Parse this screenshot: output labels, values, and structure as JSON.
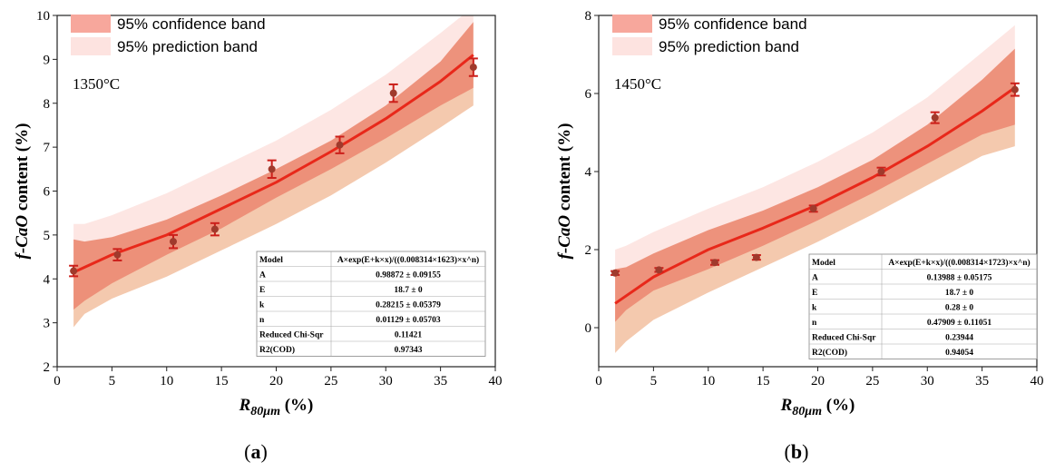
{
  "chart_data": [
    {
      "type": "line",
      "panel_label": "a",
      "temperature_label": "1350°C",
      "xlabel_main": "R",
      "xlabel_sub": "80μm",
      "xlabel_unit": " (%)",
      "ylabel": "f-CaO content (%)",
      "xlim": [
        0,
        40
      ],
      "ylim": [
        2,
        10
      ],
      "xticks": [
        0,
        5,
        10,
        15,
        20,
        25,
        30,
        35,
        40
      ],
      "yticks": [
        2,
        3,
        4,
        5,
        6,
        7,
        8,
        9,
        10
      ],
      "legend": [
        "95% confidence band",
        "95% prediction band"
      ],
      "colors": {
        "fit": "#e8281a",
        "points": "#a03a2c",
        "errorbar": "#cc1f1a",
        "conf_upper": "#ec8d76",
        "conf_lower": "#ee9880",
        "pred_upper": "#fde6e3",
        "pred_lower": "#f4c9ae"
      },
      "points": [
        {
          "x": 1.5,
          "y": 4.18,
          "err": 0.12
        },
        {
          "x": 5.5,
          "y": 4.55,
          "err": 0.13
        },
        {
          "x": 10.6,
          "y": 4.85,
          "err": 0.15
        },
        {
          "x": 14.4,
          "y": 5.13,
          "err": 0.14
        },
        {
          "x": 19.6,
          "y": 6.5,
          "err": 0.2
        },
        {
          "x": 25.8,
          "y": 7.05,
          "err": 0.19
        },
        {
          "x": 30.7,
          "y": 8.23,
          "err": 0.2
        },
        {
          "x": 38.0,
          "y": 8.82,
          "err": 0.2
        }
      ],
      "fit": {
        "x": [
          1.5,
          5,
          10,
          15,
          20,
          25,
          30,
          35,
          38
        ],
        "y": [
          4.15,
          4.55,
          5.0,
          5.6,
          6.2,
          6.9,
          7.65,
          8.5,
          9.1
        ]
      },
      "confidence_band": {
        "x": [
          1.5,
          2.5,
          5,
          10,
          15,
          20,
          25,
          30,
          35,
          38
        ],
        "upper": [
          4.9,
          4.85,
          4.95,
          5.35,
          5.9,
          6.5,
          7.15,
          7.95,
          8.95,
          9.85
        ],
        "lower": [
          3.3,
          3.5,
          3.9,
          4.55,
          5.15,
          5.85,
          6.5,
          7.2,
          7.95,
          8.35
        ]
      },
      "prediction_band": {
        "x": [
          1.5,
          2.5,
          5,
          10,
          15,
          20,
          25,
          30,
          35,
          38
        ],
        "upper": [
          5.25,
          5.25,
          5.45,
          5.95,
          6.55,
          7.15,
          7.85,
          8.65,
          9.6,
          10.2
        ],
        "lower": [
          2.9,
          3.2,
          3.55,
          4.05,
          4.65,
          5.25,
          5.9,
          6.65,
          7.45,
          7.95
        ]
      },
      "fit_table": [
        [
          "Model",
          "A×exp(E+k×x)/((0.008314×1623)×x^n)"
        ],
        [
          "A",
          "0.98872 ± 0.09155"
        ],
        [
          "E",
          "18.7 ± 0"
        ],
        [
          "k",
          "0.28215 ± 0.05379"
        ],
        [
          "n",
          "0.01129 ± 0.05703"
        ],
        [
          "Reduced Chi-Sqr",
          "0.11421"
        ],
        [
          "R2(COD)",
          "0.97343"
        ]
      ]
    },
    {
      "type": "line",
      "panel_label": "b",
      "temperature_label": "1450°C",
      "xlabel_main": "R",
      "xlabel_sub": "80μm",
      "xlabel_unit": " (%)",
      "ylabel": "f-CaO content (%)",
      "xlim": [
        0,
        40
      ],
      "ylim": [
        -1,
        8
      ],
      "xticks": [
        0,
        5,
        10,
        15,
        20,
        25,
        30,
        35,
        40
      ],
      "yticks": [
        0,
        2,
        4,
        6,
        8
      ],
      "legend": [
        "95% confidence band",
        "95% prediction band"
      ],
      "colors": {
        "fit": "#e8281a",
        "points": "#a03a2c",
        "errorbar": "#cc1f1a",
        "conf_upper": "#ec8d76",
        "conf_lower": "#ee9880",
        "pred_upper": "#fde6e3",
        "pred_lower": "#f4c9ae"
      },
      "points": [
        {
          "x": 1.5,
          "y": 1.4,
          "err": 0.05
        },
        {
          "x": 5.5,
          "y": 1.48,
          "err": 0.05
        },
        {
          "x": 10.6,
          "y": 1.67,
          "err": 0.06
        },
        {
          "x": 14.4,
          "y": 1.8,
          "err": 0.06
        },
        {
          "x": 19.6,
          "y": 3.05,
          "err": 0.08
        },
        {
          "x": 25.8,
          "y": 4.0,
          "err": 0.1
        },
        {
          "x": 30.7,
          "y": 5.38,
          "err": 0.14
        },
        {
          "x": 38.0,
          "y": 6.1,
          "err": 0.16
        }
      ],
      "fit": {
        "x": [
          1.5,
          5,
          10,
          15,
          20,
          25,
          30,
          35,
          38
        ],
        "y": [
          0.62,
          1.3,
          2.0,
          2.55,
          3.15,
          3.85,
          4.65,
          5.55,
          6.15
        ]
      },
      "confidence_band": {
        "x": [
          1.5,
          2.5,
          5,
          10,
          15,
          20,
          25,
          30,
          35,
          38
        ],
        "upper": [
          1.5,
          1.55,
          1.9,
          2.5,
          3.0,
          3.6,
          4.3,
          5.2,
          6.35,
          7.15
        ],
        "lower": [
          0.15,
          0.45,
          0.95,
          1.5,
          2.1,
          2.75,
          3.45,
          4.2,
          4.95,
          5.2
        ]
      },
      "prediction_band": {
        "x": [
          1.5,
          2.5,
          5,
          10,
          15,
          20,
          25,
          30,
          35,
          38
        ],
        "upper": [
          2.0,
          2.1,
          2.45,
          3.05,
          3.6,
          4.25,
          5.0,
          5.9,
          7.05,
          7.75
        ],
        "lower": [
          -0.65,
          -0.35,
          0.2,
          0.9,
          1.55,
          2.2,
          2.9,
          3.65,
          4.4,
          4.65
        ]
      },
      "fit_table": [
        [
          "Model",
          "A×exp(E+k×x)/((0.008314×1723)×x^n)"
        ],
        [
          "A",
          "0.13988 ± 0.05175"
        ],
        [
          "E",
          "18.7 ± 0"
        ],
        [
          "k",
          "0.28 ± 0"
        ],
        [
          "n",
          "0.47909 ± 0.11051"
        ],
        [
          "Reduced Chi-Sqr",
          "0.23944"
        ],
        [
          "R2(COD)",
          "0.94054"
        ]
      ]
    }
  ]
}
